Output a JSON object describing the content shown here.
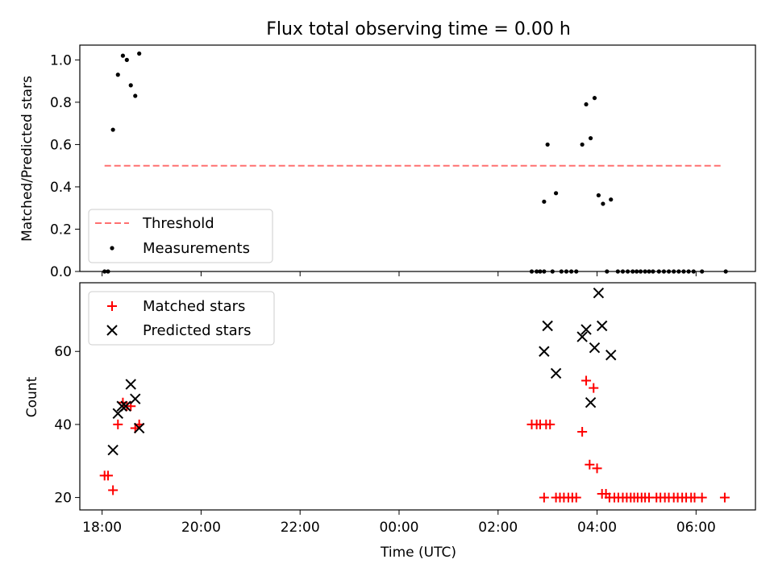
{
  "chart_data": {
    "type": "scatter",
    "title": "Flux total observing time = 0.00 h",
    "xlabel": "Time (UTC)",
    "x_ticks": [
      "18:00",
      "20:00",
      "22:00",
      "00:00",
      "02:00",
      "04:00",
      "06:00"
    ],
    "x_range_hours": [
      17.55,
      31.2
    ],
    "top_panel": {
      "ylabel": "Matched/Predicted stars",
      "ylim": [
        0,
        1.07
      ],
      "y_ticks": [
        "0.0",
        "0.2",
        "0.4",
        "0.6",
        "0.8",
        "1.0"
      ],
      "legend_position": "lower-left",
      "threshold": {
        "name": "Threshold",
        "value": 0.5,
        "x_start": 18.05,
        "x_end": 30.55,
        "color": "#ff7070"
      },
      "measurements": {
        "name": "Measurements",
        "color": "#000000",
        "points": [
          [
            18.05,
            0.0
          ],
          [
            18.12,
            0.0
          ],
          [
            18.22,
            0.67
          ],
          [
            18.32,
            0.93
          ],
          [
            18.42,
            1.02
          ],
          [
            18.5,
            1.0
          ],
          [
            18.58,
            0.88
          ],
          [
            18.67,
            0.83
          ],
          [
            18.75,
            1.03
          ],
          [
            26.93,
            0.33
          ],
          [
            27.0,
            0.6
          ],
          [
            27.17,
            0.37
          ],
          [
            27.7,
            0.6
          ],
          [
            27.78,
            0.79
          ],
          [
            27.87,
            0.63
          ],
          [
            27.95,
            0.82
          ],
          [
            28.03,
            0.36
          ],
          [
            28.12,
            0.32
          ],
          [
            28.28,
            0.34
          ],
          [
            26.68,
            0.0
          ],
          [
            26.78,
            0.0
          ],
          [
            26.85,
            0.0
          ],
          [
            26.93,
            0.0
          ],
          [
            27.1,
            0.0
          ],
          [
            27.28,
            0.0
          ],
          [
            27.38,
            0.0
          ],
          [
            27.48,
            0.0
          ],
          [
            27.58,
            0.0
          ],
          [
            28.2,
            0.0
          ],
          [
            28.42,
            0.0
          ],
          [
            28.52,
            0.0
          ],
          [
            28.62,
            0.0
          ],
          [
            28.72,
            0.0
          ],
          [
            28.8,
            0.0
          ],
          [
            28.88,
            0.0
          ],
          [
            28.97,
            0.0
          ],
          [
            29.05,
            0.0
          ],
          [
            29.13,
            0.0
          ],
          [
            29.25,
            0.0
          ],
          [
            29.35,
            0.0
          ],
          [
            29.45,
            0.0
          ],
          [
            29.55,
            0.0
          ],
          [
            29.65,
            0.0
          ],
          [
            29.75,
            0.0
          ],
          [
            29.85,
            0.0
          ],
          [
            29.95,
            0.0
          ],
          [
            30.12,
            0.0
          ],
          [
            30.6,
            0.0
          ]
        ]
      }
    },
    "bottom_panel": {
      "ylabel": "Count",
      "ylim": [
        16.6,
        78.8
      ],
      "y_ticks": [
        "20",
        "40",
        "60"
      ],
      "legend_position": "upper-left",
      "matched": {
        "name": "Matched stars",
        "color": "#ff0000",
        "points": [
          [
            18.05,
            26
          ],
          [
            18.12,
            26
          ],
          [
            18.22,
            22
          ],
          [
            18.32,
            40
          ],
          [
            18.42,
            46
          ],
          [
            18.5,
            45
          ],
          [
            18.58,
            45
          ],
          [
            18.67,
            39
          ],
          [
            18.75,
            40
          ],
          [
            26.68,
            40
          ],
          [
            26.78,
            40
          ],
          [
            26.85,
            40
          ],
          [
            26.93,
            20
          ],
          [
            26.97,
            40
          ],
          [
            27.05,
            40
          ],
          [
            27.17,
            20
          ],
          [
            27.25,
            20
          ],
          [
            27.33,
            20
          ],
          [
            27.42,
            20
          ],
          [
            27.5,
            20
          ],
          [
            27.58,
            20
          ],
          [
            27.7,
            38
          ],
          [
            27.78,
            52
          ],
          [
            27.85,
            29
          ],
          [
            27.93,
            50
          ],
          [
            28.0,
            28
          ],
          [
            28.1,
            21
          ],
          [
            28.18,
            21
          ],
          [
            28.25,
            20
          ],
          [
            28.35,
            20
          ],
          [
            28.43,
            20
          ],
          [
            28.52,
            20
          ],
          [
            28.6,
            20
          ],
          [
            28.68,
            20
          ],
          [
            28.75,
            20
          ],
          [
            28.82,
            20
          ],
          [
            28.9,
            20
          ],
          [
            28.97,
            20
          ],
          [
            29.05,
            20
          ],
          [
            29.2,
            20
          ],
          [
            29.28,
            20
          ],
          [
            29.37,
            20
          ],
          [
            29.45,
            20
          ],
          [
            29.55,
            20
          ],
          [
            29.63,
            20
          ],
          [
            29.72,
            20
          ],
          [
            29.8,
            20
          ],
          [
            29.9,
            20
          ],
          [
            29.97,
            20
          ],
          [
            30.12,
            20
          ],
          [
            30.58,
            20
          ]
        ]
      },
      "predicted": {
        "name": "Predicted stars",
        "color": "#000000",
        "points": [
          [
            18.22,
            33
          ],
          [
            18.32,
            43
          ],
          [
            18.4,
            45
          ],
          [
            18.48,
            45
          ],
          [
            18.58,
            51
          ],
          [
            18.67,
            47
          ],
          [
            18.75,
            39
          ],
          [
            26.93,
            60
          ],
          [
            27.0,
            67
          ],
          [
            27.17,
            54
          ],
          [
            27.7,
            64
          ],
          [
            27.78,
            66
          ],
          [
            27.87,
            46
          ],
          [
            27.95,
            61
          ],
          [
            28.03,
            76
          ],
          [
            28.1,
            67
          ],
          [
            28.28,
            59
          ]
        ]
      }
    }
  }
}
